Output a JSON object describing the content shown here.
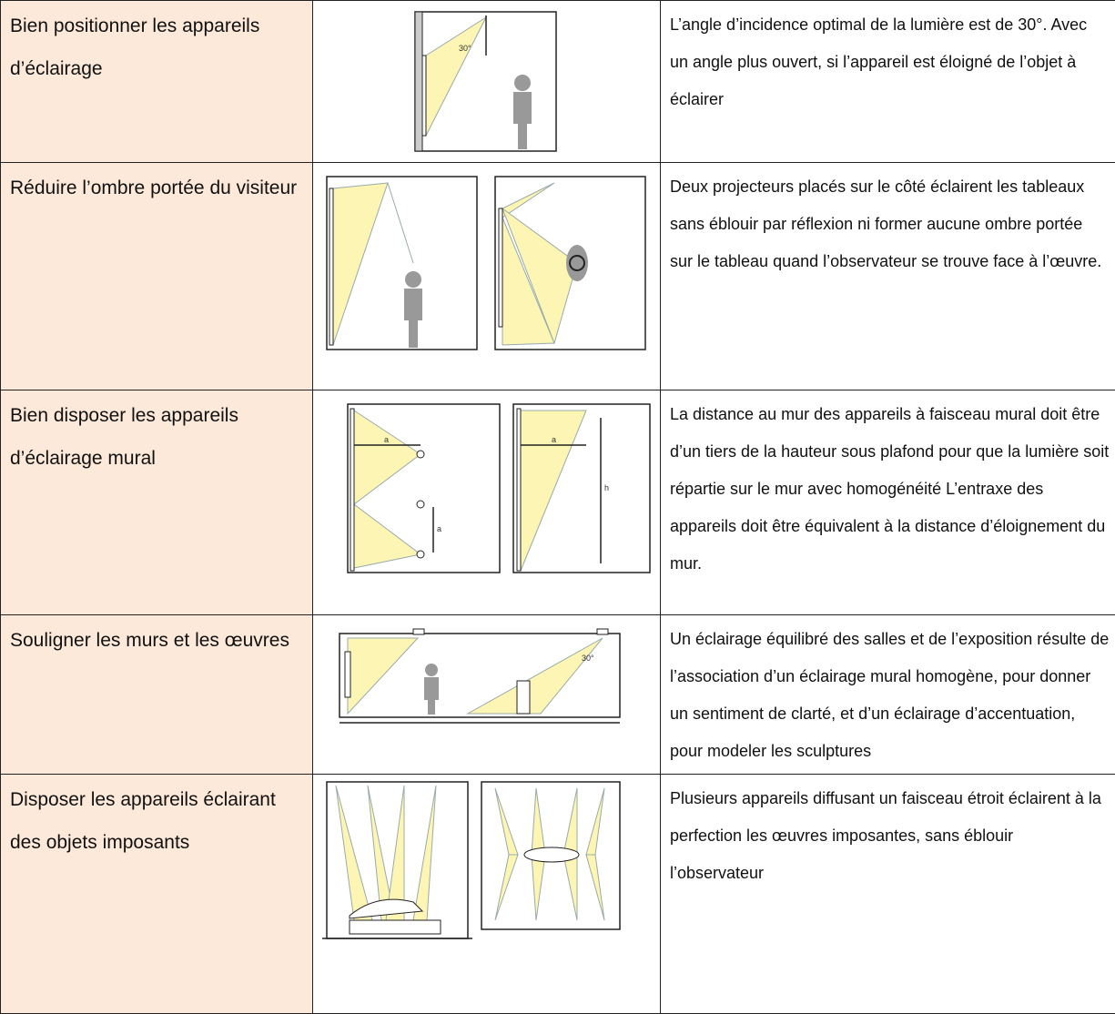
{
  "table": {
    "rows": [
      {
        "title": "Bien positionner les appareils d’éclairage",
        "description": "L’angle d’incidence optimal de la lumière est de 30°. Avec un angle plus ouvert, si l’appareil est éloigné de l’objet à éclairer",
        "figure_labels": [
          "30°"
        ]
      },
      {
        "title": "Réduire l’ombre portée du visiteur",
        "description": "Deux projecteurs placés sur le côté éclairent les tableaux sans éblouir par réflexion ni former aucune ombre portée sur le tableau quand l’observateur se trouve face à l’œuvre.",
        "figure_labels": []
      },
      {
        "title": "Bien disposer les appareils d’éclairage mural",
        "description": "La distance au mur des appareils à faisceau mural doit être d’un tiers de la hauteur sous plafond pour que la lumière soit répartie sur le mur avec homogénéité L’entraxe des appareils doit être équivalent à la distance d’éloignement du mur.",
        "figure_labels": [
          "a",
          "a",
          "a",
          "h"
        ]
      },
      {
        "title": "Souligner les murs et les œuvres",
        "description": "Un éclairage équilibré des salles et de l’exposition résulte de l’association d’un éclairage mural homogène, pour donner un sentiment de clarté, et d’un éclairage d’accentuation, pour modeler les sculptures",
        "figure_labels": [
          "30°"
        ]
      },
      {
        "title": "Disposer les appareils éclairant des objets imposants",
        "description": "Plusieurs appareils diffusant un faisceau étroit éclairent à la perfection les œuvres imposantes, sans éblouir l’observateur",
        "figure_labels": []
      }
    ]
  }
}
